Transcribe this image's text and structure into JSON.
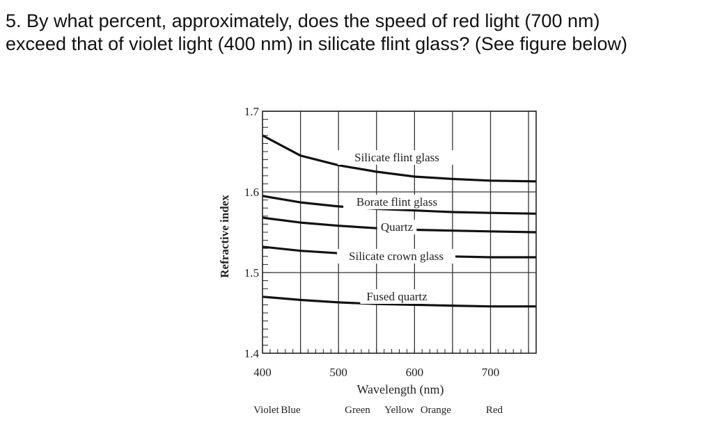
{
  "question": {
    "line1": "5. By what percent, approximately, does the speed of red light (700 nm)",
    "line2": "exceed that of violet light (400 nm) in silicate flint glass? (See figure below)"
  },
  "chart_data": {
    "type": "line",
    "xlabel": "Wavelength (nm)",
    "ylabel": "Refractive index",
    "xlim": [
      400,
      760
    ],
    "ylim": [
      1.4,
      1.7
    ],
    "x_ticks": [
      400,
      500,
      600,
      700
    ],
    "y_ticks": [
      1.4,
      1.5,
      1.6,
      1.7
    ],
    "grid": true,
    "series": [
      {
        "name": "Silicate flint glass",
        "x": [
          400,
          450,
          500,
          550,
          600,
          650,
          700,
          760
        ],
        "y": [
          1.67,
          1.645,
          1.633,
          1.625,
          1.619,
          1.616,
          1.614,
          1.613
        ]
      },
      {
        "name": "Borate flint glass",
        "x": [
          400,
          450,
          500,
          550,
          600,
          650,
          700,
          760
        ],
        "y": [
          1.595,
          1.587,
          1.582,
          1.579,
          1.577,
          1.575,
          1.574,
          1.573
        ]
      },
      {
        "name": "Quartz",
        "x": [
          400,
          450,
          500,
          550,
          600,
          650,
          700,
          760
        ],
        "y": [
          1.568,
          1.562,
          1.558,
          1.555,
          1.553,
          1.552,
          1.551,
          1.55
        ]
      },
      {
        "name": "Silicate crown glass",
        "x": [
          400,
          450,
          500,
          550,
          600,
          650,
          700,
          760
        ],
        "y": [
          1.532,
          1.527,
          1.524,
          1.522,
          1.521,
          1.52,
          1.519,
          1.519
        ]
      },
      {
        "name": "Fused quartz",
        "x": [
          400,
          450,
          500,
          550,
          600,
          650,
          700,
          760
        ],
        "y": [
          1.47,
          1.466,
          1.463,
          1.461,
          1.46,
          1.459,
          1.458,
          1.458
        ]
      }
    ],
    "colors_bands": [
      {
        "label": "Violet",
        "x": 405
      },
      {
        "label": "Blue",
        "x": 437
      },
      {
        "label": "Green",
        "x": 525
      },
      {
        "label": "Yellow",
        "x": 580
      },
      {
        "label": "Orange",
        "x": 628
      },
      {
        "label": "Red",
        "x": 705
      }
    ]
  }
}
